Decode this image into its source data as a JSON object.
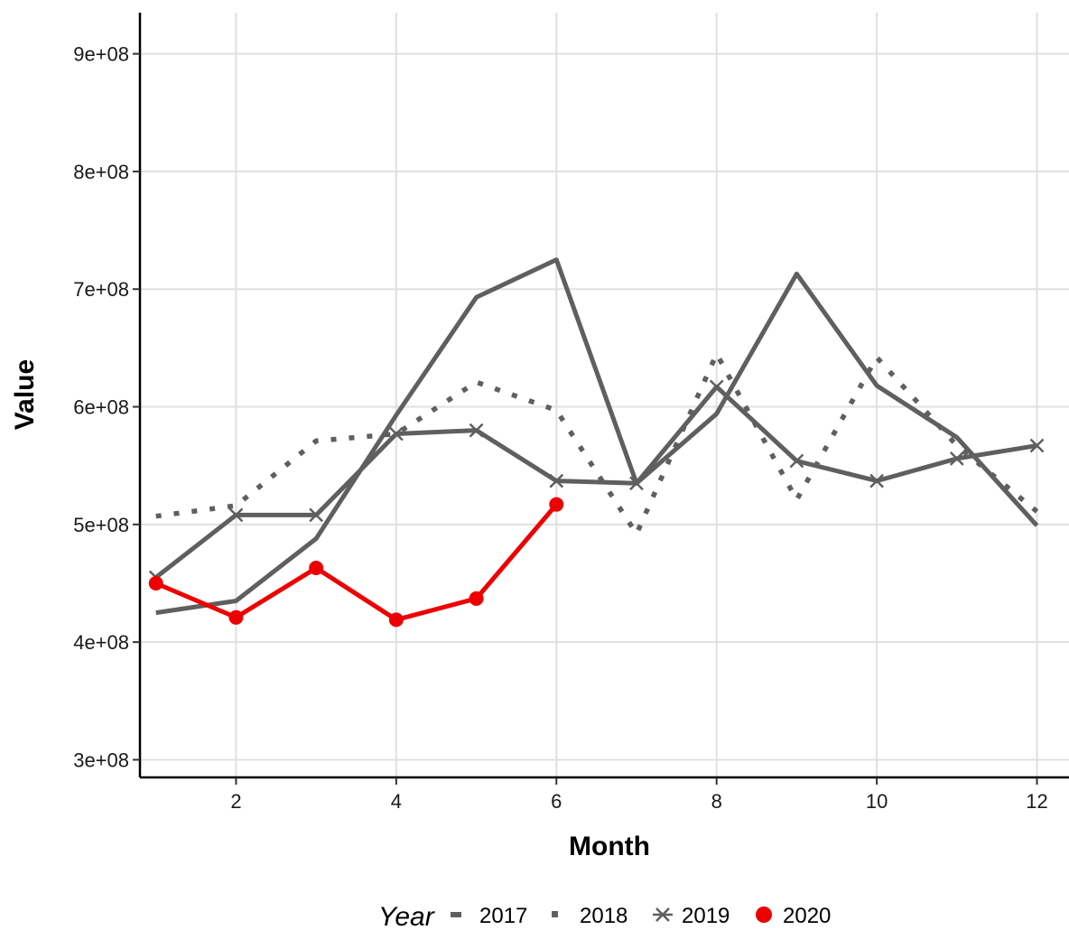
{
  "chart_data": {
    "type": "line",
    "xlabel": "Month",
    "ylabel": "Value",
    "xlim": [
      0.8,
      12.4
    ],
    "ylim": [
      285000000.0,
      935000000.0
    ],
    "x_ticks": [
      2,
      4,
      6,
      8,
      10,
      12
    ],
    "x_tick_labels": [
      "2",
      "4",
      "6",
      "8",
      "10",
      "12"
    ],
    "y_ticks": [
      300000000,
      400000000,
      500000000,
      600000000,
      700000000,
      800000000,
      900000000
    ],
    "y_tick_labels": [
      "3e+08",
      "4e+08",
      "5e+08",
      "6e+08",
      "7e+08",
      "8e+08",
      "9e+08"
    ],
    "grid": true,
    "legend": {
      "title": "Year",
      "position": "bottom"
    },
    "series": [
      {
        "name": "2017",
        "color": "#5f5f5f",
        "line": "solid",
        "marker": "none",
        "x": [
          1,
          2,
          3,
          4,
          5,
          6,
          7,
          8,
          9,
          10,
          11,
          12
        ],
        "values": [
          425000000,
          435000000,
          488000000,
          593000000,
          693000000,
          725000000,
          535000000,
          594000000,
          713000000,
          618000000,
          574000000,
          499000000
        ]
      },
      {
        "name": "2018",
        "color": "#5f5f5f",
        "line": "dotted",
        "marker": "none",
        "x": [
          1,
          2,
          3,
          4,
          5,
          6,
          7,
          8,
          9,
          10,
          11,
          12
        ],
        "values": [
          507000000,
          516000000,
          571000000,
          577000000,
          621000000,
          597000000,
          492000000,
          645000000,
          521000000,
          642000000,
          567000000,
          511000000
        ]
      },
      {
        "name": "2019",
        "color": "#5f5f5f",
        "line": "solid",
        "marker": "x",
        "x": [
          1,
          2,
          3,
          4,
          5,
          6,
          7,
          8,
          9,
          10,
          11,
          12
        ],
        "values": [
          455000000,
          508000000,
          508000000,
          577000000,
          580000000,
          537000000,
          535000000,
          617000000,
          554000000,
          537000000,
          556000000,
          567000000
        ]
      },
      {
        "name": "2020",
        "color": "#ee0000",
        "line": "solid",
        "marker": "circle",
        "x": [
          1,
          2,
          3,
          4,
          5,
          6
        ],
        "values": [
          450000000,
          421000000,
          463000000,
          419000000,
          437000000,
          517000000
        ]
      }
    ]
  }
}
